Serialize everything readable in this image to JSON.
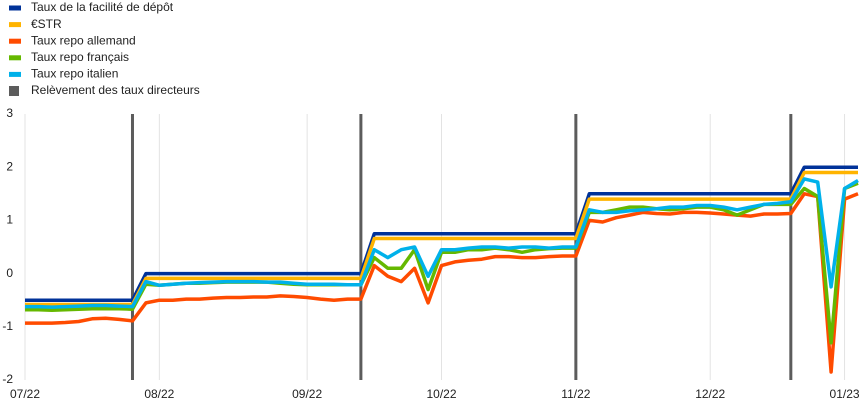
{
  "chart_data": {
    "type": "line",
    "categories": [
      "07/22",
      null,
      null,
      null,
      null,
      null,
      null,
      null,
      null,
      null,
      "08/22",
      null,
      null,
      null,
      null,
      null,
      null,
      null,
      null,
      null,
      null,
      "09/22",
      null,
      null,
      null,
      null,
      null,
      null,
      null,
      null,
      null,
      "10/22",
      null,
      null,
      null,
      null,
      null,
      null,
      null,
      null,
      null,
      "11/22",
      null,
      null,
      null,
      null,
      null,
      null,
      null,
      null,
      null,
      "12/22",
      null,
      null,
      null,
      null,
      null,
      null,
      null,
      null,
      null,
      "01/23",
      null
    ],
    "series": [
      {
        "name": "Taux de la facilité de dépôt",
        "color": "#003299",
        "values": [
          -0.5,
          -0.5,
          -0.5,
          -0.5,
          -0.5,
          -0.5,
          -0.5,
          -0.5,
          -0.5,
          0,
          0,
          0,
          0,
          0,
          0,
          0,
          0,
          0,
          0,
          0,
          0,
          0,
          0,
          0,
          0,
          0,
          0.75,
          0.75,
          0.75,
          0.75,
          0.75,
          0.75,
          0.75,
          0.75,
          0.75,
          0.75,
          0.75,
          0.75,
          0.75,
          0.75,
          0.75,
          0.75,
          1.5,
          1.5,
          1.5,
          1.5,
          1.5,
          1.5,
          1.5,
          1.5,
          1.5,
          1.5,
          1.5,
          1.5,
          1.5,
          1.5,
          1.5,
          1.5,
          2,
          2,
          2,
          2,
          2
        ]
      },
      {
        "name": "€STR",
        "color": "#ffb400",
        "values": [
          -0.58,
          -0.58,
          -0.58,
          -0.58,
          -0.58,
          -0.58,
          -0.58,
          -0.58,
          -0.58,
          -0.09,
          -0.09,
          -0.09,
          -0.09,
          -0.09,
          -0.09,
          -0.09,
          -0.09,
          -0.09,
          -0.09,
          -0.09,
          -0.09,
          -0.09,
          -0.09,
          -0.09,
          -0.09,
          -0.09,
          0.66,
          0.66,
          0.66,
          0.66,
          0.66,
          0.66,
          0.66,
          0.66,
          0.66,
          0.66,
          0.66,
          0.66,
          0.66,
          0.66,
          0.66,
          0.66,
          1.4,
          1.4,
          1.4,
          1.4,
          1.4,
          1.4,
          1.4,
          1.4,
          1.4,
          1.4,
          1.4,
          1.4,
          1.4,
          1.4,
          1.4,
          1.4,
          1.9,
          1.9,
          1.9,
          1.9,
          1.9
        ]
      },
      {
        "name": "Taux repo allemand",
        "color": "#ff4b00",
        "values": [
          -0.93,
          -0.93,
          -0.93,
          -0.92,
          -0.9,
          -0.85,
          -0.84,
          -0.86,
          -0.89,
          -0.55,
          -0.5,
          -0.5,
          -0.48,
          -0.48,
          -0.46,
          -0.45,
          -0.45,
          -0.44,
          -0.44,
          -0.42,
          -0.43,
          -0.45,
          -0.48,
          -0.5,
          -0.48,
          -0.48,
          0.15,
          -0.05,
          -0.15,
          0.1,
          -0.55,
          0.15,
          0.22,
          0.25,
          0.27,
          0.32,
          0.32,
          0.3,
          0.3,
          0.32,
          0.33,
          0.33,
          1.0,
          0.97,
          1.05,
          1.1,
          1.15,
          1.13,
          1.12,
          1.15,
          1.15,
          1.14,
          1.12,
          1.1,
          1.08,
          1.12,
          1.12,
          1.13,
          1.5,
          1.45,
          -1.85,
          1.4,
          1.5
        ]
      },
      {
        "name": "Taux repo français",
        "color": "#65b800",
        "values": [
          -0.68,
          -0.68,
          -0.69,
          -0.68,
          -0.67,
          -0.66,
          -0.66,
          -0.66,
          -0.67,
          -0.2,
          -0.22,
          -0.2,
          -0.18,
          -0.18,
          -0.17,
          -0.16,
          -0.16,
          -0.16,
          -0.16,
          -0.18,
          -0.2,
          -0.21,
          -0.21,
          -0.21,
          -0.21,
          -0.21,
          0.3,
          0.1,
          0.1,
          0.45,
          -0.3,
          0.4,
          0.4,
          0.45,
          0.45,
          0.48,
          0.45,
          0.4,
          0.45,
          0.47,
          0.48,
          0.48,
          1.15,
          1.15,
          1.2,
          1.25,
          1.25,
          1.22,
          1.2,
          1.22,
          1.25,
          1.25,
          1.2,
          1.1,
          1.2,
          1.3,
          1.3,
          1.3,
          1.6,
          1.45,
          -1.3,
          1.6,
          1.7
        ]
      },
      {
        "name": "Taux repo italien",
        "color": "#00b1ea",
        "values": [
          -0.62,
          -0.62,
          -0.63,
          -0.62,
          -0.61,
          -0.6,
          -0.6,
          -0.61,
          -0.62,
          -0.15,
          -0.22,
          -0.2,
          -0.18,
          -0.17,
          -0.16,
          -0.15,
          -0.15,
          -0.15,
          -0.16,
          -0.16,
          -0.18,
          -0.2,
          -0.2,
          -0.2,
          -0.21,
          -0.21,
          0.45,
          0.3,
          0.45,
          0.5,
          -0.05,
          0.45,
          0.45,
          0.48,
          0.5,
          0.5,
          0.48,
          0.5,
          0.5,
          0.48,
          0.5,
          0.5,
          1.2,
          1.15,
          1.15,
          1.18,
          1.2,
          1.22,
          1.25,
          1.25,
          1.28,
          1.28,
          1.25,
          1.2,
          1.25,
          1.3,
          1.32,
          1.35,
          1.78,
          1.72,
          -0.25,
          1.6,
          1.75
        ]
      },
      {
        "name": "Relèvement des taux directeurs",
        "type": "bar",
        "color": "#5c5c5c",
        "values": [
          null,
          null,
          null,
          null,
          null,
          null,
          null,
          null,
          3,
          null,
          null,
          null,
          null,
          null,
          null,
          null,
          null,
          null,
          null,
          null,
          null,
          null,
          null,
          null,
          null,
          3,
          null,
          null,
          null,
          null,
          null,
          null,
          null,
          null,
          null,
          null,
          null,
          null,
          null,
          null,
          null,
          3,
          null,
          null,
          null,
          null,
          null,
          null,
          null,
          null,
          null,
          null,
          null,
          null,
          null,
          null,
          null,
          3,
          null,
          null,
          null,
          null,
          null
        ]
      }
    ],
    "ylim": [
      -2,
      3
    ],
    "yticks": [
      -2,
      -1,
      0,
      1,
      2,
      3
    ],
    "grid": "x",
    "legend": "top-left"
  }
}
